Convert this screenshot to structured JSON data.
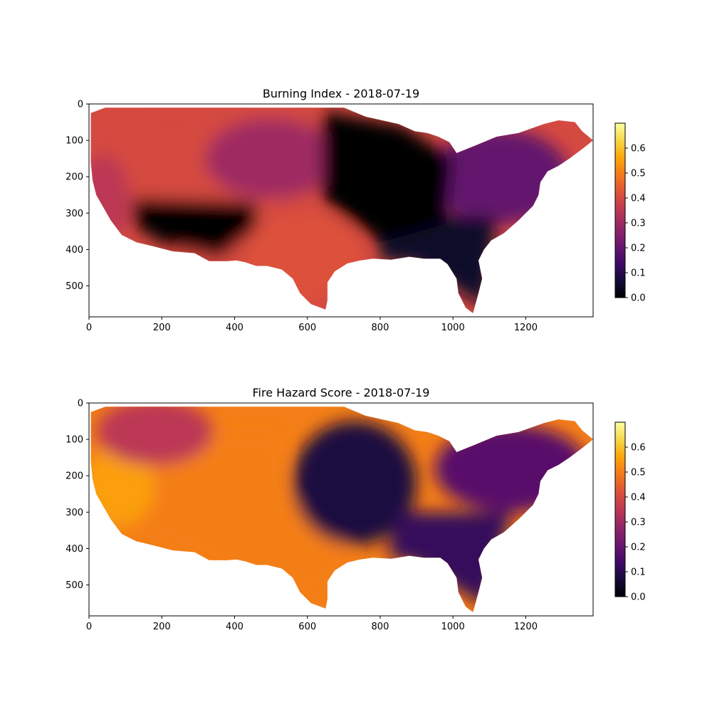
{
  "chart_data": [
    {
      "type": "heatmap",
      "title": "Burning Index - 2018-07-19",
      "xlim": [
        0,
        1385
      ],
      "ylim": [
        585,
        0
      ],
      "xticks": [
        0,
        200,
        400,
        600,
        800,
        1000,
        1200
      ],
      "yticks": [
        0,
        100,
        200,
        300,
        400,
        500
      ],
      "colormap": "inferno",
      "color_range": [
        0,
        0.7
      ],
      "colorbar_ticks": [
        0.0,
        0.1,
        0.2,
        0.3,
        0.4,
        0.5,
        0.6
      ],
      "colorbar_tick_labels": [
        "0.0",
        "0.1",
        "0.2",
        "0.3",
        "0.4",
        "0.5",
        "0.6"
      ],
      "regions": [
        {
          "description": "west / great plains",
          "value": 0.4
        },
        {
          "description": "california coast",
          "value": 0.35
        },
        {
          "description": "southwest rockies",
          "value": 0.0
        },
        {
          "description": "northern plains",
          "value": 0.3
        },
        {
          "description": "upper midwest / great lakes",
          "value": 0.0
        },
        {
          "description": "northeast",
          "value": 0.2
        },
        {
          "description": "southeast",
          "value": 0.05
        },
        {
          "description": "texas",
          "value": 0.42
        }
      ]
    },
    {
      "type": "heatmap",
      "title": "Fire Hazard Score - 2018-07-19",
      "xlim": [
        0,
        1385
      ],
      "ylim": [
        585,
        0
      ],
      "xticks": [
        0,
        200,
        400,
        600,
        800,
        1000,
        1200
      ],
      "yticks": [
        0,
        100,
        200,
        300,
        400,
        500
      ],
      "colormap": "inferno",
      "color_range": [
        0,
        0.7
      ],
      "colorbar_ticks": [
        0.0,
        0.1,
        0.2,
        0.3,
        0.4,
        0.5,
        0.6
      ],
      "colorbar_tick_labels": [
        "0.0",
        "0.1",
        "0.2",
        "0.3",
        "0.4",
        "0.5",
        "0.6"
      ],
      "regions": [
        {
          "description": "great basin / southwest",
          "value": 0.5
        },
        {
          "description": "california",
          "value": 0.55
        },
        {
          "description": "northern rockies",
          "value": 0.35
        },
        {
          "description": "texas / southern plains",
          "value": 0.5
        },
        {
          "description": "upper midwest",
          "value": 0.08
        },
        {
          "description": "northeast / appalachians",
          "value": 0.18
        },
        {
          "description": "southeast",
          "value": 0.12
        }
      ]
    }
  ]
}
